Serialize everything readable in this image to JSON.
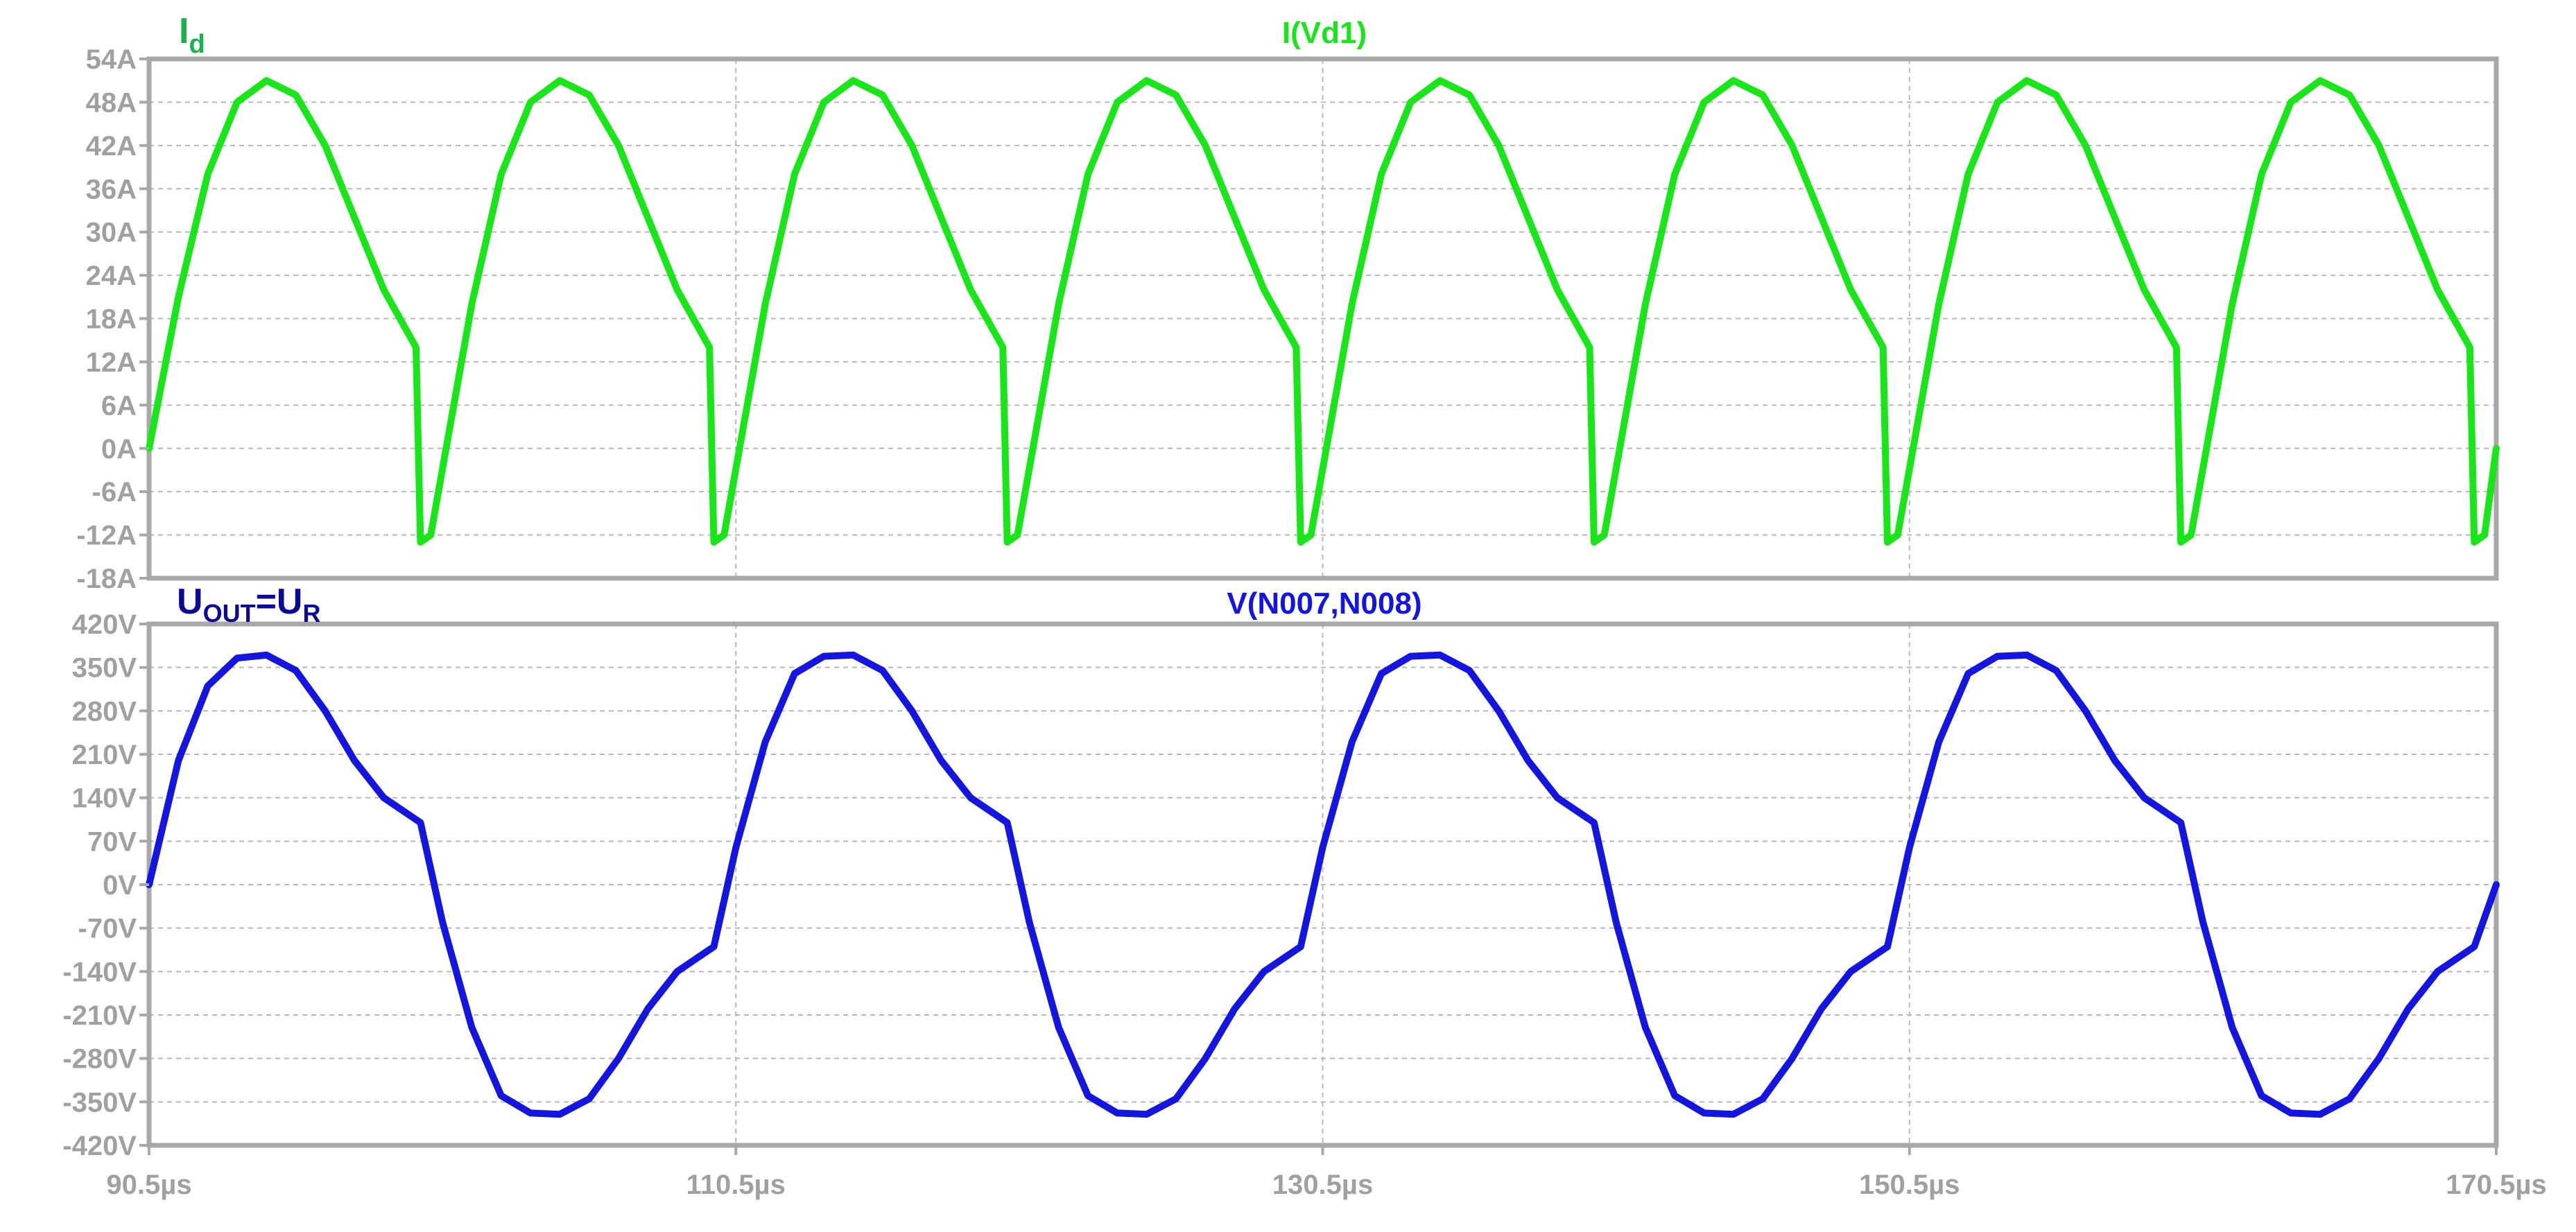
{
  "chart_data": [
    {
      "type": "line",
      "series": [
        {
          "name": "I(Vd1)",
          "color": "#19e619",
          "x": [
            90.5,
            91.5,
            92.5,
            93.5,
            94.5,
            95.5,
            96.5,
            97.5,
            98.5,
            99.6,
            99.75,
            100.1,
            101.5,
            102.5,
            103.5,
            104.5,
            105.5,
            106.5,
            107.5,
            108.5,
            109.6,
            109.75,
            110.1,
            111.5,
            112.5,
            113.5,
            114.5,
            115.5,
            116.5,
            117.5,
            118.5,
            119.6,
            119.75,
            120.1,
            121.5,
            122.5,
            123.5,
            124.5,
            125.5,
            126.5,
            127.5,
            128.5,
            129.6,
            129.75,
            130.1,
            131.5,
            132.5,
            133.5,
            134.5,
            135.5,
            136.5,
            137.5,
            138.5,
            139.6,
            139.75,
            140.1,
            141.5,
            142.5,
            143.5,
            144.5,
            145.5,
            146.5,
            147.5,
            148.5,
            149.6,
            149.75,
            150.1,
            151.5,
            152.5,
            153.5,
            154.5,
            155.5,
            156.5,
            157.5,
            158.5,
            159.6,
            159.75,
            160.1,
            161.5,
            162.5,
            163.5,
            164.5,
            165.5,
            166.5,
            167.5,
            168.5,
            169.6,
            169.75,
            170.1,
            170.5
          ],
          "values": [
            0,
            21,
            38,
            48,
            51,
            49,
            42,
            32,
            22,
            14,
            -13,
            -12,
            20,
            38,
            48,
            51,
            49,
            42,
            32,
            22,
            14,
            -13,
            -12,
            20,
            38,
            48,
            51,
            49,
            42,
            32,
            22,
            14,
            -13,
            -12,
            20,
            38,
            48,
            51,
            49,
            42,
            32,
            22,
            14,
            -13,
            -12,
            20,
            38,
            48,
            51,
            49,
            42,
            32,
            22,
            14,
            -13,
            -12,
            20,
            38,
            48,
            51,
            49,
            42,
            32,
            22,
            14,
            -13,
            -12,
            20,
            38,
            48,
            51,
            49,
            42,
            32,
            22,
            14,
            -13,
            -12,
            20,
            38,
            48,
            51,
            49,
            42,
            32,
            22,
            14,
            -13,
            -12,
            0
          ],
          "ylim": [
            -18,
            54
          ],
          "yticks": [
            "54A",
            "48A",
            "42A",
            "36A",
            "30A",
            "24A",
            "18A",
            "12A",
            "6A",
            "0A",
            "-6A",
            "-12A",
            "-18A"
          ]
        }
      ],
      "annotation": {
        "main": "I",
        "sub": "d"
      },
      "trace_label": "I(Vd1)"
    },
    {
      "type": "line",
      "series": [
        {
          "name": "V(N007,N008)",
          "color": "#1515e0",
          "x": [
            90.5,
            91.5,
            92.5,
            93.5,
            94.5,
            95.5,
            96.5,
            97.5,
            98.5,
            99.75,
            100.5,
            101.5,
            102.5,
            103.5,
            104.5,
            105.5,
            106.5,
            107.5,
            108.5,
            109.75,
            110.5,
            111.5,
            112.5,
            113.5,
            114.5,
            115.5,
            116.5,
            117.5,
            118.5,
            119.75,
            120.5,
            121.5,
            122.5,
            123.5,
            124.5,
            125.5,
            126.5,
            127.5,
            128.5,
            129.75,
            130.5,
            131.5,
            132.5,
            133.5,
            134.5,
            135.5,
            136.5,
            137.5,
            138.5,
            139.75,
            140.5,
            141.5,
            142.5,
            143.5,
            144.5,
            145.5,
            146.5,
            147.5,
            148.5,
            149.75,
            150.5,
            151.5,
            152.5,
            153.5,
            154.5,
            155.5,
            156.5,
            157.5,
            158.5,
            159.75,
            160.5,
            161.5,
            162.5,
            163.5,
            164.5,
            165.5,
            166.5,
            167.5,
            168.5,
            169.75,
            170.5
          ],
          "values": [
            0,
            200,
            320,
            365,
            370,
            345,
            280,
            200,
            140,
            100,
            -60,
            -230,
            -340,
            -368,
            -370,
            -345,
            -280,
            -200,
            -140,
            -100,
            60,
            230,
            340,
            368,
            370,
            345,
            280,
            200,
            140,
            100,
            -60,
            -230,
            -340,
            -368,
            -370,
            -345,
            -280,
            -200,
            -140,
            -100,
            60,
            230,
            340,
            368,
            370,
            345,
            280,
            200,
            140,
            100,
            -60,
            -230,
            -340,
            -368,
            -370,
            -345,
            -280,
            -200,
            -140,
            -100,
            60,
            230,
            340,
            368,
            370,
            345,
            280,
            200,
            140,
            100,
            -60,
            -230,
            -340,
            -368,
            -370,
            -345,
            -280,
            -200,
            -140,
            -100,
            0
          ],
          "ylim": [
            -420,
            420
          ],
          "yticks": [
            "420V",
            "350V",
            "280V",
            "210V",
            "140V",
            "70V",
            "0V",
            "-70V",
            "-140V",
            "-210V",
            "-280V",
            "-350V",
            "-420V"
          ]
        }
      ],
      "annotation": {
        "main": "U",
        "sub1": "OUT",
        "mid": "=U",
        "sub2": "R"
      },
      "trace_label": "V(N007,N008)",
      "xlim": [
        90.5,
        170.5
      ],
      "xticks": [
        "90.5µs",
        "110.5µs",
        "130.5µs",
        "150.5µs",
        "170.5µs"
      ]
    }
  ],
  "colors": {
    "frame": "#a8a8a8",
    "grid": "#b8b8b8",
    "tick_text": "#a0a0a0",
    "current_label": "#19b24c",
    "voltage_label": "#0a0a96"
  }
}
